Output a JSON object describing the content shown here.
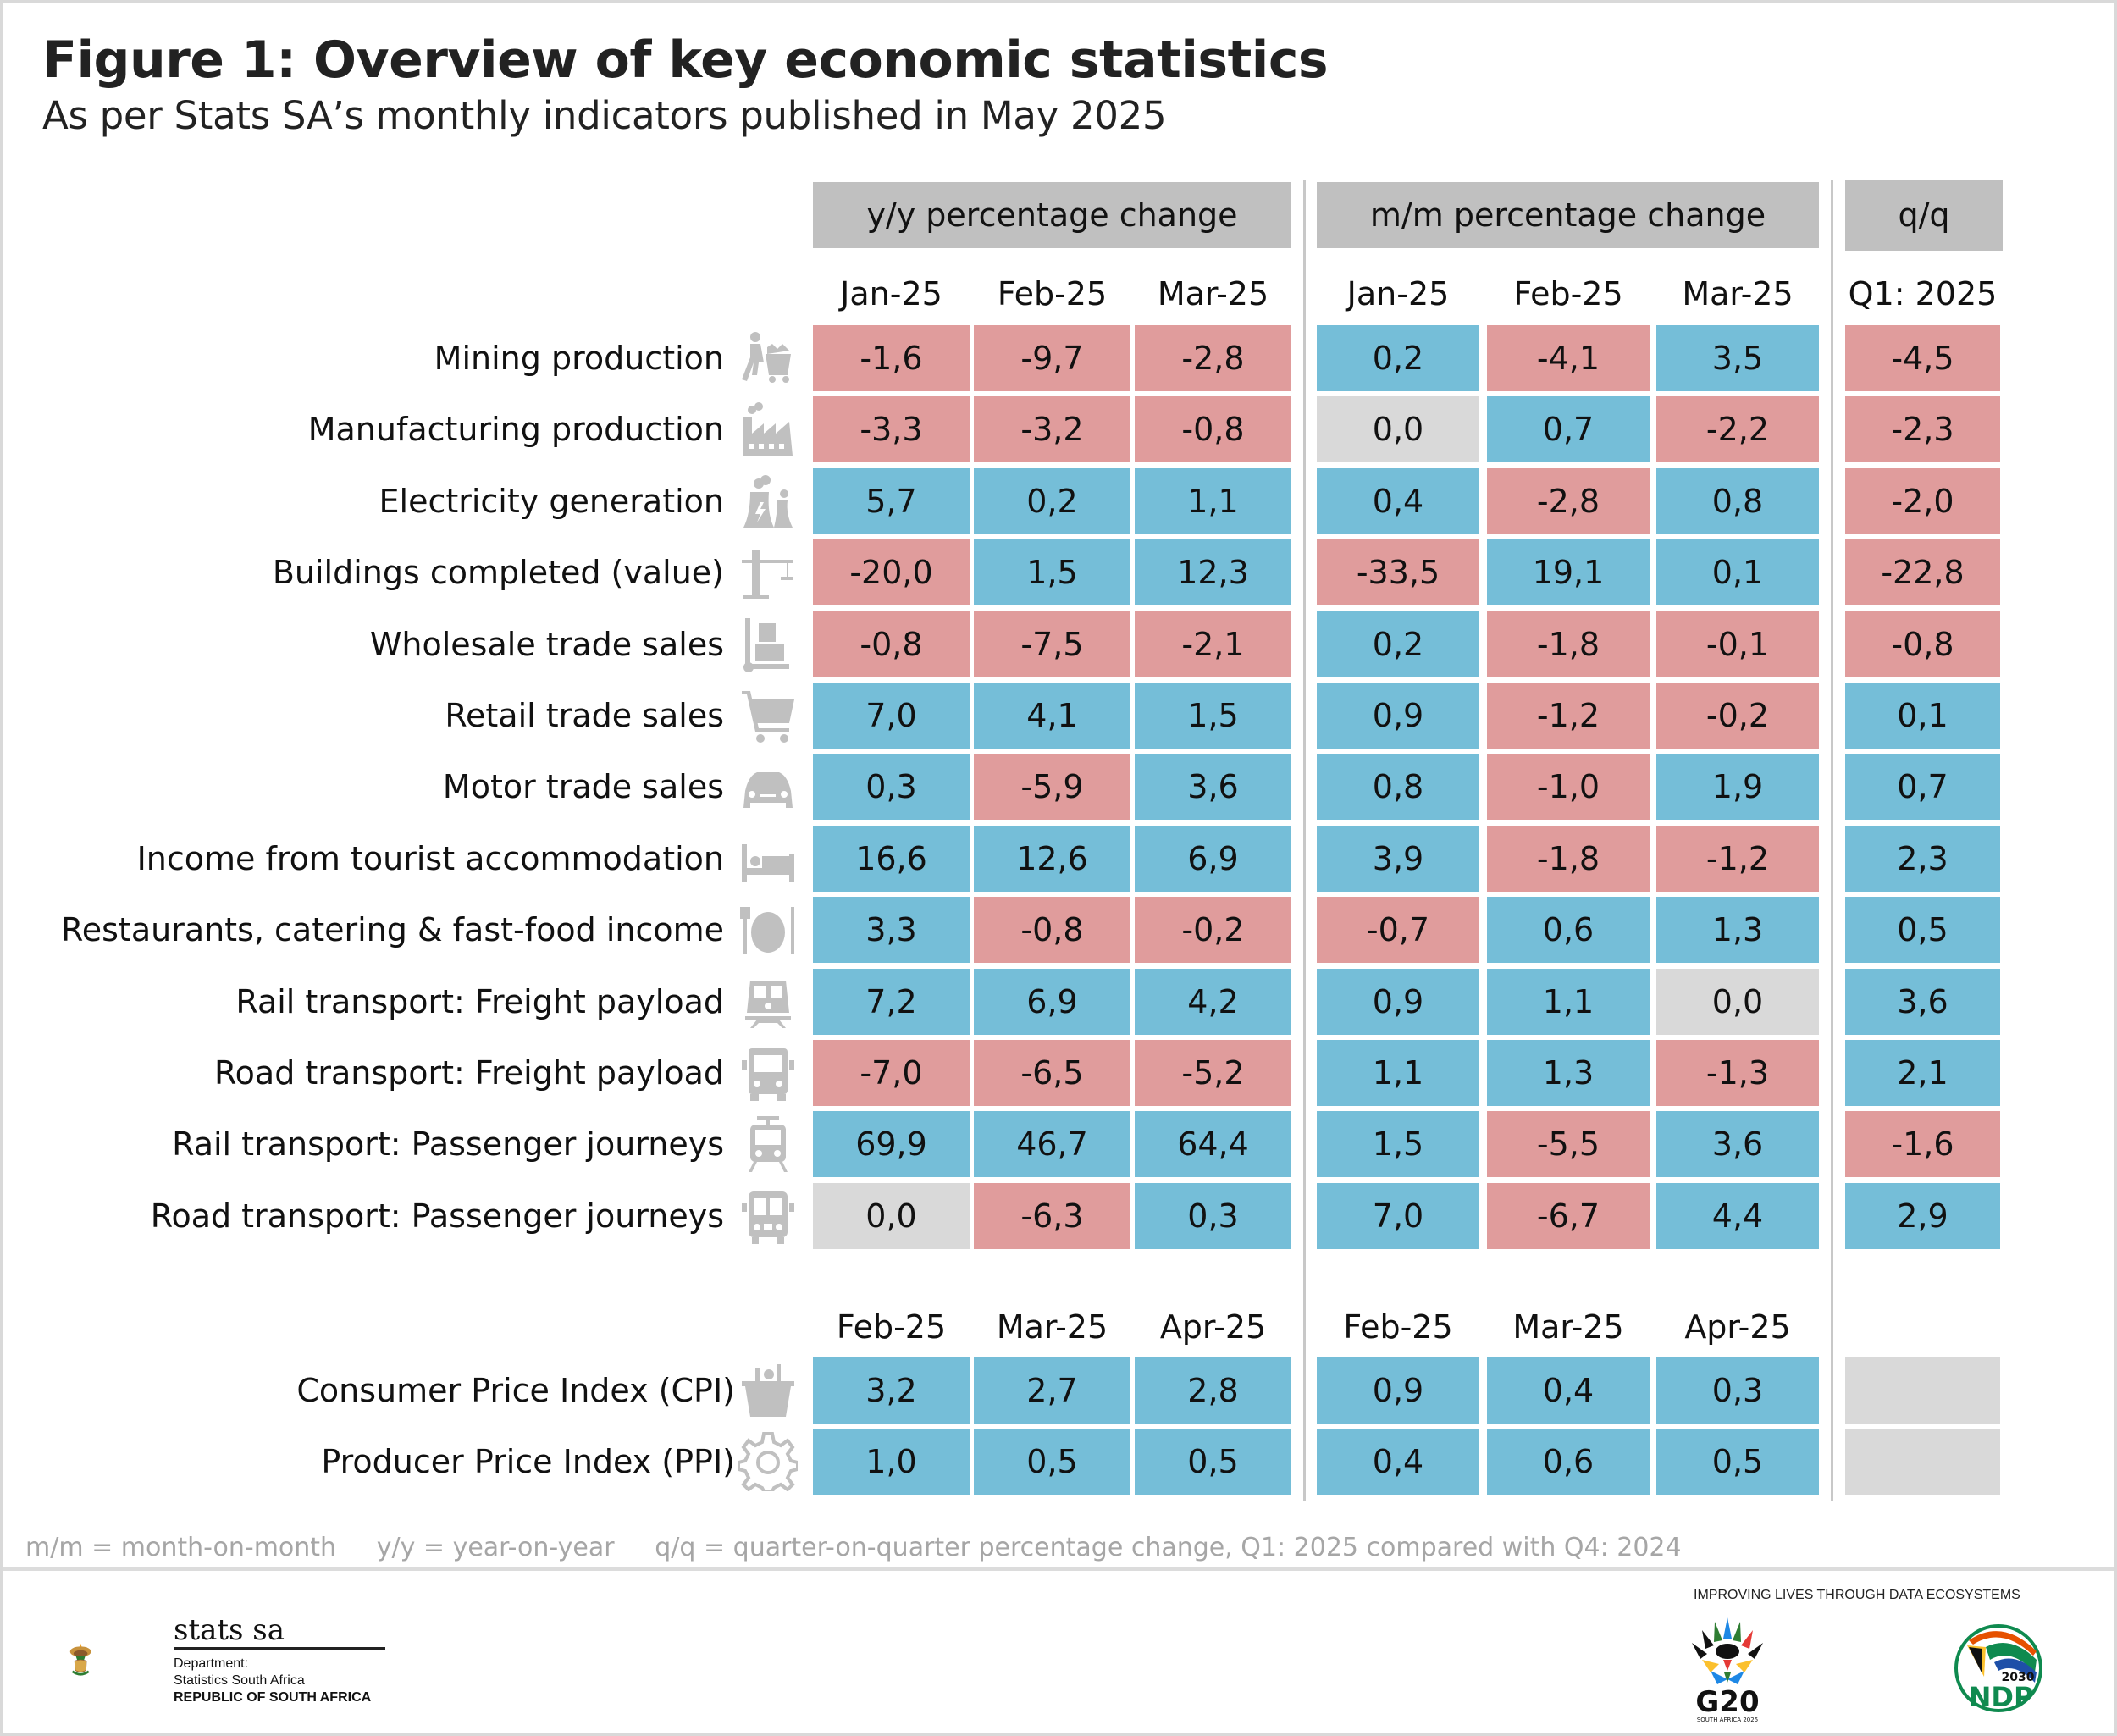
{
  "title": "Figure 1: Overview of key economic statistics",
  "subtitle": "As per Stats SA’s monthly indicators published in May 2025",
  "groups": [
    {
      "label": "y/y percentage change"
    },
    {
      "label": "m/m percentage change"
    },
    {
      "label": "q/q"
    }
  ],
  "colors": {
    "negative": "#e09c9c",
    "positive": "#75bed8",
    "zero": "#d9d9d9",
    "header": "#c0c0c0",
    "icon": "#c0c0c0"
  },
  "chart_data": {
    "type": "table",
    "title": "Figure 1: Overview of key economic statistics",
    "subtitle": "As per Stats SA’s monthly indicators published in May 2025",
    "sections": [
      {
        "columns": {
          "yy": [
            "Jan-25",
            "Feb-25",
            "Mar-25"
          ],
          "mm": [
            "Jan-25",
            "Feb-25",
            "Mar-25"
          ],
          "qq": [
            "Q1: 2025"
          ]
        },
        "rows": [
          {
            "label": "Mining production",
            "icon": "mining-cart-icon",
            "yy": [
              "-1,6",
              "-9,7",
              "-2,8"
            ],
            "mm": [
              "0,2",
              "-4,1",
              "3,5"
            ],
            "qq": [
              "-4,5"
            ]
          },
          {
            "label": "Manufacturing production",
            "icon": "factory-icon",
            "yy": [
              "-3,3",
              "-3,2",
              "-0,8"
            ],
            "mm": [
              "0,0",
              "0,7",
              "-2,2"
            ],
            "qq": [
              "-2,3"
            ]
          },
          {
            "label": "Electricity generation",
            "icon": "power-plant-icon",
            "yy": [
              "5,7",
              "0,2",
              "1,1"
            ],
            "mm": [
              "0,4",
              "-2,8",
              "0,8"
            ],
            "qq": [
              "-2,0"
            ]
          },
          {
            "label": "Buildings completed (value)",
            "icon": "crane-icon",
            "yy": [
              "-20,0",
              "1,5",
              "12,3"
            ],
            "mm": [
              "-33,5",
              "19,1",
              "0,1"
            ],
            "qq": [
              "-22,8"
            ]
          },
          {
            "label": "Wholesale trade sales",
            "icon": "hand-truck-icon",
            "yy": [
              "-0,8",
              "-7,5",
              "-2,1"
            ],
            "mm": [
              "0,2",
              "-1,8",
              "-0,1"
            ],
            "qq": [
              "-0,8"
            ]
          },
          {
            "label": "Retail trade sales",
            "icon": "shopping-cart-icon",
            "yy": [
              "7,0",
              "4,1",
              "1,5"
            ],
            "mm": [
              "0,9",
              "-1,2",
              "-0,2"
            ],
            "qq": [
              "0,1"
            ]
          },
          {
            "label": "Motor trade sales",
            "icon": "car-icon",
            "yy": [
              "0,3",
              "-5,9",
              "3,6"
            ],
            "mm": [
              "0,8",
              "-1,0",
              "1,9"
            ],
            "qq": [
              "0,7"
            ]
          },
          {
            "label": "Income from tourist accommodation",
            "icon": "bed-icon",
            "yy": [
              "16,6",
              "12,6",
              "6,9"
            ],
            "mm": [
              "3,9",
              "-1,8",
              "-1,2"
            ],
            "qq": [
              "2,3"
            ]
          },
          {
            "label": "Restaurants, catering & fast-food income",
            "icon": "plate-cutlery-icon",
            "yy": [
              "3,3",
              "-0,8",
              "-0,2"
            ],
            "mm": [
              "-0,7",
              "0,6",
              "1,3"
            ],
            "qq": [
              "0,5"
            ]
          },
          {
            "label": "Rail transport: Freight payload",
            "icon": "locomotive-icon",
            "yy": [
              "7,2",
              "6,9",
              "4,2"
            ],
            "mm": [
              "0,9",
              "1,1",
              "0,0"
            ],
            "qq": [
              "3,6"
            ]
          },
          {
            "label": "Road transport: Freight payload",
            "icon": "truck-icon",
            "yy": [
              "-7,0",
              "-6,5",
              "-5,2"
            ],
            "mm": [
              "1,1",
              "1,3",
              "-1,3"
            ],
            "qq": [
              "2,1"
            ]
          },
          {
            "label": "Rail transport: Passenger journeys",
            "icon": "tram-icon",
            "yy": [
              "69,9",
              "46,7",
              "64,4"
            ],
            "mm": [
              "1,5",
              "-5,5",
              "3,6"
            ],
            "qq": [
              "-1,6"
            ]
          },
          {
            "label": "Road transport: Passenger journeys",
            "icon": "bus-icon",
            "yy": [
              "0,0",
              "-6,3",
              "0,3"
            ],
            "mm": [
              "7,0",
              "-6,7",
              "4,4"
            ],
            "qq": [
              "2,9"
            ]
          }
        ]
      },
      {
        "columns": {
          "yy": [
            "Feb-25",
            "Mar-25",
            "Apr-25"
          ],
          "mm": [
            "Feb-25",
            "Mar-25",
            "Apr-25"
          ],
          "qq": [
            ""
          ]
        },
        "rows": [
          {
            "label": "Consumer Price Index (CPI)",
            "icon": "grocery-basket-icon",
            "yy": [
              "3,2",
              "2,7",
              "2,8"
            ],
            "mm": [
              "0,9",
              "0,4",
              "0,3"
            ],
            "qq": [
              ""
            ]
          },
          {
            "label": "Producer Price Index (PPI)",
            "icon": "gear-icon",
            "yy": [
              "1,0",
              "0,5",
              "0,5"
            ],
            "mm": [
              "0,4",
              "0,6",
              "0,5"
            ],
            "qq": [
              ""
            ]
          }
        ]
      }
    ]
  },
  "footnote": "m/m = month-on-month     y/y = year-on-year     q/q = quarter-on-quarter percentage change, Q1: 2025 compared with Q4: 2024",
  "footer": {
    "brand": "stats sa",
    "dept_line1": "Department:",
    "dept_line2": "Statistics South Africa",
    "dept_line3": "REPUBLIC OF SOUTH AFRICA",
    "tagline": "IMPROVING LIVES THROUGH DATA ECOSYSTEMS",
    "g20_text": "G20",
    "g20_sub": "SOUTH AFRICA 2025",
    "ndp_year": "2030",
    "ndp_text": "NDP"
  }
}
